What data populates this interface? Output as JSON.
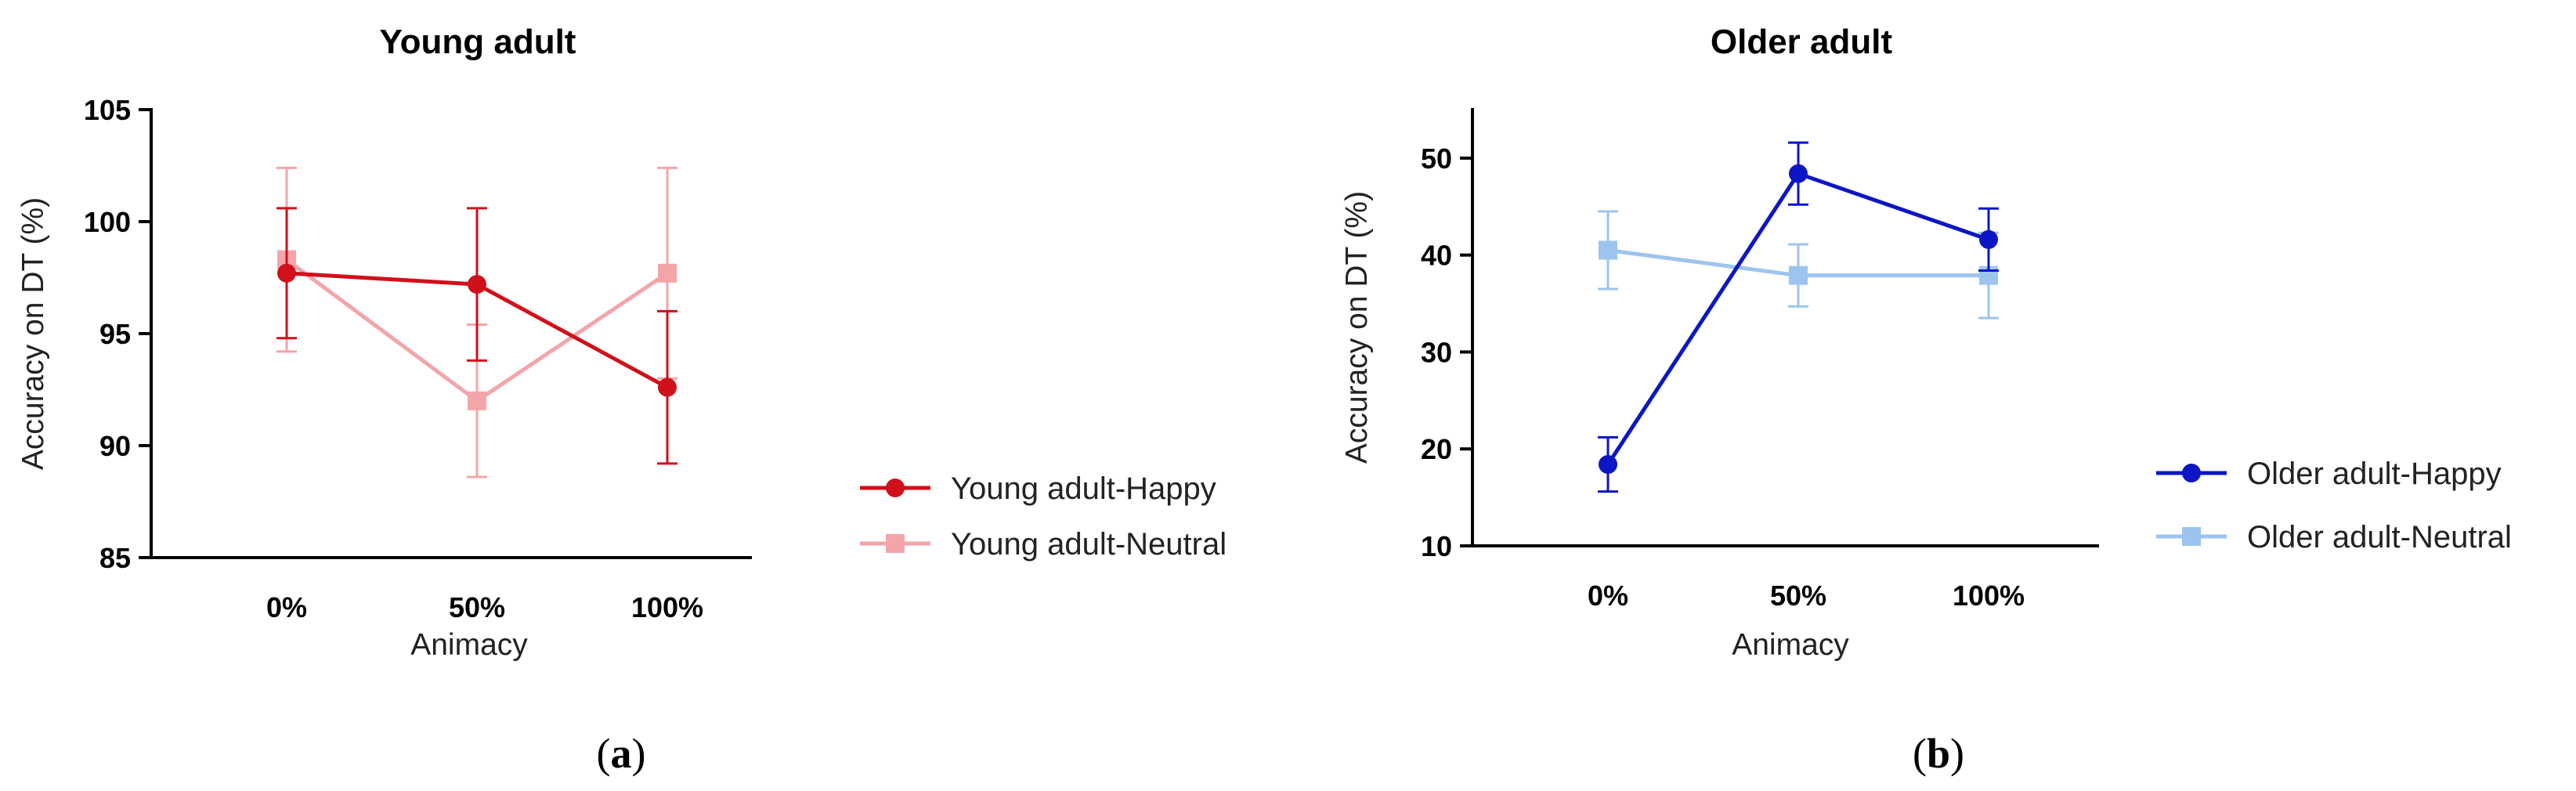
{
  "colors": {
    "young_happy": "#d0101a",
    "young_neutral": "#f3a5aa",
    "older_happy": "#0c16c4",
    "older_neutral": "#9cc4ee"
  },
  "chart_data": [
    {
      "type": "line",
      "title": "Young adult",
      "xlabel": "Animacy",
      "ylabel": "Accuracy on DT (%)",
      "categories": [
        "0%",
        "50%",
        "100%"
      ],
      "ylim": [
        85,
        105
      ],
      "yticks": [
        "85",
        "90",
        "95",
        "100",
        "105"
      ],
      "yticks_values": [
        85,
        90,
        95,
        100,
        105
      ],
      "series": [
        {
          "name": "Young adult-Happy",
          "marker": "circle",
          "color_key": "young_happy",
          "values": [
            97.7,
            97.2,
            92.6
          ],
          "errors": [
            2.9,
            3.4,
            3.4
          ]
        },
        {
          "name": "Young adult-Neutral",
          "marker": "square",
          "color_key": "young_neutral",
          "values": [
            98.3,
            92.0,
            97.7
          ],
          "errors": [
            4.1,
            3.4,
            4.7
          ]
        }
      ],
      "caption": {
        "open": "(",
        "letter": "a",
        "close": ")"
      }
    },
    {
      "type": "line",
      "title": "Older adult",
      "xlabel": "Animacy",
      "ylabel": "Accuracy on DT (%)",
      "categories": [
        "0%",
        "50%",
        "100%"
      ],
      "ylim": [
        10,
        55
      ],
      "yticks": [
        "10",
        "20",
        "30",
        "40",
        "50"
      ],
      "yticks_values": [
        10,
        20,
        30,
        40,
        50
      ],
      "series": [
        {
          "name": "Older adult-Happy",
          "marker": "circle",
          "color_key": "older_happy",
          "values": [
            18.4,
            48.4,
            41.6
          ],
          "errors": [
            2.8,
            3.2,
            3.2
          ]
        },
        {
          "name": "Older adult-Neutral",
          "marker": "square",
          "color_key": "older_neutral",
          "values": [
            40.5,
            37.9,
            37.9
          ],
          "errors": [
            4.0,
            3.2,
            4.4
          ]
        }
      ],
      "caption": {
        "open": "(",
        "letter": "b",
        "close": ")"
      }
    }
  ]
}
